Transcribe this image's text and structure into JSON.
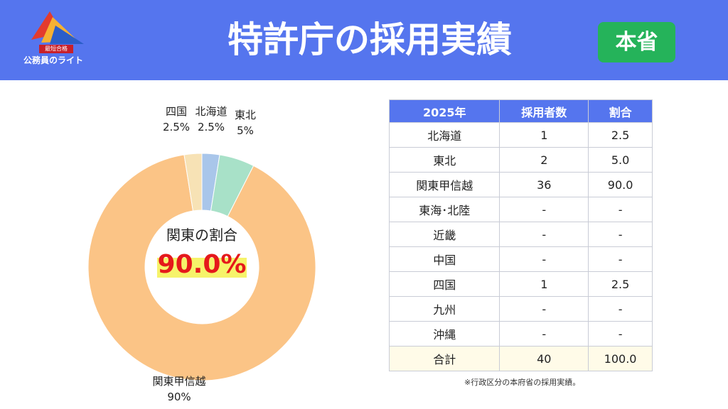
{
  "header": {
    "logo_badge": "最短合格",
    "logo_text": "公務員のライト",
    "title": "特許庁の採用実績",
    "badge": "本省"
  },
  "colors": {
    "header_bg": "#5575ee",
    "badge_bg": "#25b35a",
    "highlight_text": "#e5191b",
    "highlight_marker": "#f6f36a"
  },
  "chart_data": {
    "type": "donut",
    "center_label": "関東の割合",
    "center_value": "90.0%",
    "slices": [
      {
        "name": "北海道",
        "value": 2.5,
        "label": "2.5%",
        "color": "#a9c6ea"
      },
      {
        "name": "東北",
        "value": 5,
        "label": "5%",
        "color": "#a8e1c8"
      },
      {
        "name": "関東甲信越",
        "value": 90,
        "label": "90%",
        "color": "#fbc486"
      },
      {
        "name": "四国",
        "value": 2.5,
        "label": "2.5%",
        "color": "#f7e2b5"
      }
    ]
  },
  "table": {
    "headers": [
      "2025年",
      "採用者数",
      "割合"
    ],
    "rows": [
      [
        "北海道",
        "1",
        "2.5"
      ],
      [
        "東北",
        "2",
        "5.0"
      ],
      [
        "関東甲信越",
        "36",
        "90.0"
      ],
      [
        "東海･北陸",
        "-",
        "-"
      ],
      [
        "近畿",
        "-",
        "-"
      ],
      [
        "中国",
        "-",
        "-"
      ],
      [
        "四国",
        "1",
        "2.5"
      ],
      [
        "九州",
        "-",
        "-"
      ],
      [
        "沖縄",
        "-",
        "-"
      ]
    ],
    "total": [
      "合計",
      "40",
      "100.0"
    ]
  },
  "note": "※行政区分の本府省の採用実績。"
}
